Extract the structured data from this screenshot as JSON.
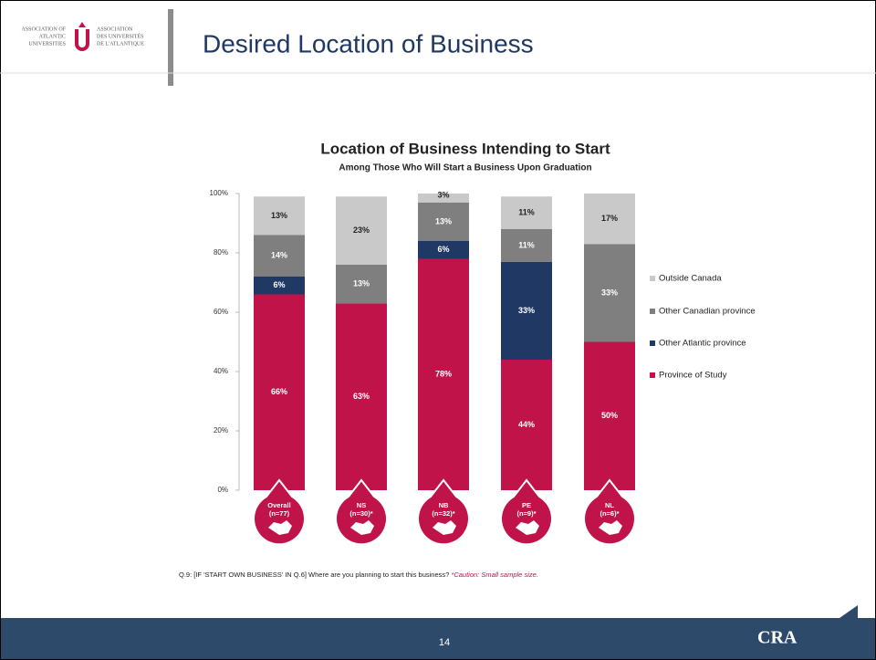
{
  "header": {
    "logo_en": [
      "ASSOCIATION OF",
      "ATLANTIC",
      "UNIVERSITIES"
    ],
    "logo_fr": [
      "ASSOCIATION",
      "DES UNIVERSITÉS",
      "DE L'ATLANTIQUE"
    ],
    "title": "Desired Location of Business"
  },
  "chart_data": {
    "type": "stacked_bar",
    "title": "Location of Business Intending to Start",
    "subtitle": "Among Those Who Will Start a Business Upon Graduation",
    "categories": [
      "Overall",
      "NS",
      "NB",
      "PE",
      "NL"
    ],
    "category_notes": [
      "(n=77)",
      "(n=30)*",
      "(n=32)*",
      "(n=9)*",
      "(n=6)*"
    ],
    "series": [
      {
        "name": "Province of Study",
        "color": "#c0134a",
        "values": [
          66,
          63,
          78,
          44,
          50
        ],
        "value_labels": [
          "66%",
          "63%",
          "78%",
          "44%",
          "50%"
        ]
      },
      {
        "name": "Other Atlantic province",
        "color": "#1f3864",
        "values": [
          6,
          0,
          6,
          33,
          0
        ],
        "value_labels": [
          "6%",
          null,
          "6%",
          "33%",
          null
        ]
      },
      {
        "name": "Other Canadian province",
        "color": "#7f7f7f",
        "values": [
          14,
          13,
          13,
          11,
          33
        ],
        "value_labels": [
          "14%",
          "13%",
          "13%",
          "11%",
          "33%"
        ]
      },
      {
        "name": "Outside Canada",
        "color": "#c9c9c9",
        "values": [
          13,
          23,
          3,
          11,
          17
        ],
        "value_labels": [
          "13%",
          "23%",
          "3%",
          "11%",
          "17%"
        ]
      }
    ],
    "ylim": [
      0,
      100
    ],
    "yticks": [
      {
        "value": 0,
        "label": "0%"
      },
      {
        "value": 20,
        "label": "20%"
      },
      {
        "value": 40,
        "label": "40%"
      },
      {
        "value": 60,
        "label": "60%"
      },
      {
        "value": 80,
        "label": "80%"
      },
      {
        "value": 100,
        "label": "100%"
      }
    ],
    "legend": "right"
  },
  "footnote": {
    "question": "Q.9: [IF 'START OWN BUSINESS' IN Q.6] Where are you planning to start this business?",
    "caution": "*Caution: Small sample size."
  },
  "footer": {
    "page": "14",
    "brand": "CRA"
  }
}
